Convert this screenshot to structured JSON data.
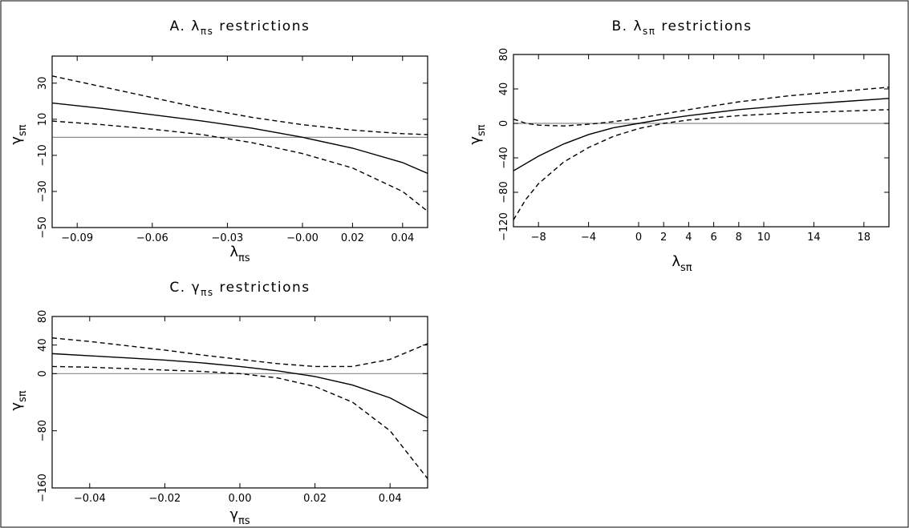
{
  "chart_data": [
    {
      "type": "line",
      "title": "A. λπs restrictions",
      "title_main": "A. λ",
      "title_sub": "πs",
      "title_rest": " restrictions",
      "xlabel_main": "λ",
      "xlabel_sub": "πs",
      "ylabel_main": "γ",
      "ylabel_sub": "sπ",
      "xlim": [
        -0.1,
        0.05
      ],
      "ylim": [
        -50,
        45
      ],
      "xticks": [
        -0.09,
        -0.06,
        -0.03,
        0.0,
        0.02,
        0.04
      ],
      "xtick_labels": [
        "−0.09",
        "−0.06",
        "−0.03",
        "−0.00",
        "0.02",
        "0.04"
      ],
      "yticks": [
        -50,
        -30,
        -10,
        10,
        30
      ],
      "ytick_labels": [
        "−50",
        "−30",
        "−10",
        "10",
        "30"
      ],
      "reference_y": 0,
      "series": [
        {
          "style": "solid",
          "x": [
            -0.1,
            -0.08,
            -0.06,
            -0.04,
            -0.02,
            0.0,
            0.02,
            0.04,
            0.05
          ],
          "y": [
            19,
            16,
            12.5,
            9,
            5,
            0,
            -6,
            -14,
            -20
          ]
        },
        {
          "style": "dashed",
          "x": [
            -0.1,
            -0.08,
            -0.06,
            -0.04,
            -0.02,
            0.0,
            0.02,
            0.04,
            0.05
          ],
          "y": [
            34,
            28,
            22,
            16,
            11,
            7,
            4,
            2,
            1.5
          ]
        },
        {
          "style": "dashed",
          "x": [
            -0.1,
            -0.08,
            -0.06,
            -0.04,
            -0.02,
            0.0,
            0.02,
            0.04,
            0.05
          ],
          "y": [
            9,
            7,
            4.5,
            1.5,
            -3,
            -9,
            -17,
            -30,
            -41
          ]
        }
      ]
    },
    {
      "type": "line",
      "title": "B. λsπ restrictions",
      "title_main": "B. λ",
      "title_sub": "sπ",
      "title_rest": " restrictions",
      "xlabel_main": "λ",
      "xlabel_sub": "sπ",
      "ylabel_main": "γ",
      "ylabel_sub": "sπ",
      "xlim": [
        -10,
        20
      ],
      "ylim": [
        -120,
        80
      ],
      "xticks": [
        -8,
        -4,
        0,
        2,
        4,
        6,
        8,
        10,
        14,
        18
      ],
      "xtick_labels": [
        "−8",
        "−4",
        "0",
        "2",
        "4",
        "6",
        "8",
        "10",
        "14",
        "18"
      ],
      "yticks": [
        -120,
        -80,
        -40,
        0,
        40,
        80
      ],
      "ytick_labels": [
        "−120",
        "−80",
        "−40",
        "0",
        "40",
        "80"
      ],
      "reference_y": 0,
      "series": [
        {
          "style": "solid",
          "x": [
            -10,
            -8,
            -6,
            -4,
            -2,
            0,
            2,
            4,
            8,
            12,
            16,
            20
          ],
          "y": [
            -55,
            -38,
            -24,
            -13,
            -5,
            0,
            5,
            9,
            16,
            21,
            25,
            29
          ]
        },
        {
          "style": "dashed",
          "x": [
            -10,
            -9,
            -8,
            -6,
            -4,
            -2,
            0,
            2,
            4,
            8,
            12,
            16,
            20
          ],
          "y": [
            5,
            0,
            -2,
            -3,
            -1,
            2,
            6,
            11,
            16,
            25,
            32,
            37,
            42
          ]
        },
        {
          "style": "dashed",
          "x": [
            -10,
            -9,
            -8,
            -6,
            -4,
            -2,
            0,
            2,
            4,
            8,
            12,
            16,
            20
          ],
          "y": [
            -112,
            -88,
            -70,
            -45,
            -28,
            -15,
            -6,
            0,
            4,
            9,
            12,
            14,
            16
          ]
        }
      ]
    },
    {
      "type": "line",
      "title": "C. γπs restrictions",
      "title_main": "C. γ",
      "title_sub": "πs",
      "title_rest": " restrictions",
      "xlabel_main": "γ",
      "xlabel_sub": "πs",
      "ylabel_main": "γ",
      "ylabel_sub": "sπ",
      "xlim": [
        -0.05,
        0.05
      ],
      "ylim": [
        -160,
        80
      ],
      "xticks": [
        -0.04,
        -0.02,
        0.0,
        0.02,
        0.04
      ],
      "xtick_labels": [
        "−0.04",
        "−0.02",
        "0.00",
        "0.02",
        "0.04"
      ],
      "yticks": [
        -160,
        -80,
        0,
        40,
        80
      ],
      "ytick_labels": [
        "−160",
        "−80",
        "0",
        "40",
        "80"
      ],
      "reference_y": 0,
      "series": [
        {
          "style": "solid",
          "x": [
            -0.05,
            -0.04,
            -0.03,
            -0.02,
            -0.01,
            0.0,
            0.01,
            0.02,
            0.03,
            0.04,
            0.05
          ],
          "y": [
            28,
            25,
            22,
            19,
            15,
            10,
            4,
            -4,
            -16,
            -34,
            -62
          ]
        },
        {
          "style": "dashed",
          "x": [
            -0.05,
            -0.04,
            -0.03,
            -0.02,
            -0.01,
            0.0,
            0.01,
            0.02,
            0.03,
            0.04,
            0.05
          ],
          "y": [
            50,
            45,
            39,
            33,
            26,
            20,
            14,
            10,
            10,
            20,
            42
          ]
        },
        {
          "style": "dashed",
          "x": [
            -0.05,
            -0.04,
            -0.03,
            -0.02,
            -0.01,
            0.0,
            0.01,
            0.02,
            0.03,
            0.04,
            0.05
          ],
          "y": [
            10,
            9,
            7,
            5,
            3,
            0,
            -6,
            -18,
            -40,
            -80,
            -147
          ]
        }
      ]
    }
  ]
}
